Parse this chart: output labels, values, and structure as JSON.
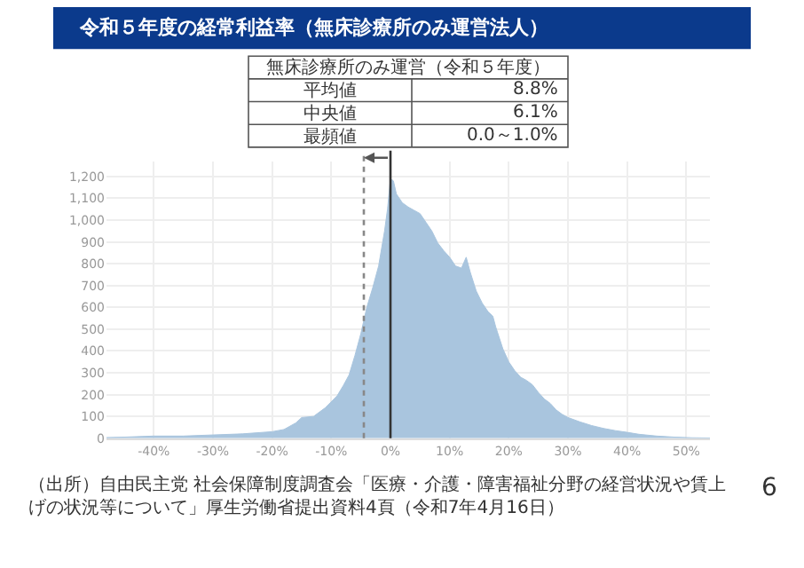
{
  "chart_data": {
    "type": "area",
    "title": "令和５年度の経常利益率（無床診療所のみ運営法人）",
    "annotations": [
      "無床診療所のみ運営（令和５年度）",
      "平均値",
      "8.8%",
      "中央値",
      "6.1%",
      "最頻値",
      "0.0～1.0%",
      "（出所）自由民主党 社会保障制度調査会「医療・介護・障害福祉分野の経営状況や賃上げの状況等について」厚生労働省提出資料4頁（令和7年4月16日）",
      "6"
    ],
    "x": [
      -48,
      -45,
      -40,
      -35,
      -30,
      -25,
      -20,
      -18,
      -16,
      -15,
      -13,
      -11,
      -9,
      -8,
      -7,
      -6,
      -5,
      -4,
      -3,
      -2,
      -1,
      -0.5,
      0,
      0.5,
      1,
      2,
      3,
      4,
      5,
      6,
      7,
      8,
      9,
      10,
      11,
      12,
      12.8,
      13.5,
      14.5,
      15.5,
      16.5,
      17.3,
      17.8,
      19,
      20,
      21,
      22,
      23,
      24,
      25,
      26,
      27,
      28,
      29,
      30,
      32,
      34,
      36,
      38,
      40,
      42,
      45,
      48,
      51,
      54
    ],
    "values": [
      3,
      5,
      10,
      10,
      15,
      20,
      30,
      40,
      70,
      95,
      100,
      140,
      195,
      240,
      290,
      380,
      480,
      600,
      690,
      790,
      950,
      1050,
      1190,
      1180,
      1120,
      1080,
      1060,
      1045,
      1030,
      990,
      950,
      895,
      860,
      830,
      790,
      780,
      830,
      760,
      675,
      620,
      580,
      560,
      510,
      410,
      350,
      310,
      280,
      265,
      245,
      210,
      180,
      160,
      130,
      110,
      95,
      75,
      58,
      45,
      35,
      27,
      18,
      10,
      5,
      2,
      1
    ],
    "color": "#a9c5de",
    "xlim": [
      -48,
      54
    ],
    "ylim": [
      0,
      1270
    ],
    "xticks": [
      {
        "value": -40,
        "label": "-40%"
      },
      {
        "value": -30,
        "label": "-30%"
      },
      {
        "value": -20,
        "label": "-20%"
      },
      {
        "value": -10,
        "label": "-10%"
      },
      {
        "value": 0,
        "label": "0%"
      },
      {
        "value": 10,
        "label": "10%"
      },
      {
        "value": 20,
        "label": "20%"
      },
      {
        "value": 30,
        "label": "30%"
      },
      {
        "value": 40,
        "label": "40%"
      },
      {
        "value": 50,
        "label": "50%"
      }
    ],
    "yticks": [
      0,
      100,
      200,
      300,
      400,
      500,
      600,
      700,
      800,
      900,
      {
        "value": 1000,
        "label": "1,000"
      },
      {
        "value": 1100,
        "label": "1,100"
      },
      {
        "value": 1200,
        "label": "1,200"
      }
    ],
    "grid": true,
    "ref_lines": [
      {
        "axis": "x",
        "value": -4.5,
        "line_style": "dotted",
        "color": "#888888"
      },
      {
        "axis": "x",
        "value": 0,
        "line_style": "solid",
        "color": "#333333"
      }
    ]
  }
}
